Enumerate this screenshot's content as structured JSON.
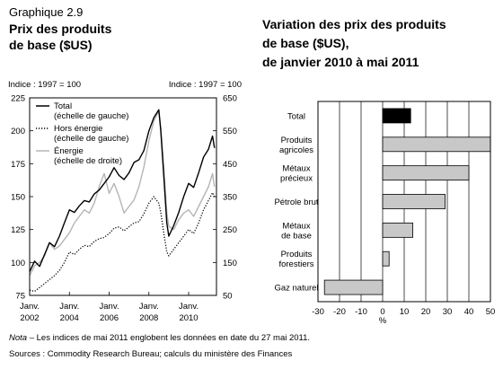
{
  "graph_number": "Graphique 2.9",
  "left_title": [
    "Prix des produits",
    "de base ($US)"
  ],
  "right_title": [
    "Variation des prix des produits",
    "de base ($US),",
    "de janvier 2010 à mai 2011"
  ],
  "note_label": "Nota",
  "note_text": " – Les indices de mai 2011 englobent les données en date du 27 mai 2011.",
  "sources": "Sources : Commodity Research Bureau; calculs du ministère des Finances",
  "chart_data": [
    {
      "type": "line",
      "left_axis_label": "Indice : 1997 = 100",
      "right_axis_label": "Indice : 1997 = 100",
      "left_ylim": [
        75,
        225
      ],
      "left_ticks": [
        "225",
        "200",
        "175",
        "150",
        "125",
        "100",
        "75"
      ],
      "right_ylim": [
        50,
        650
      ],
      "right_ticks": [
        "650",
        "550",
        "450",
        "350",
        "250",
        "150",
        "50"
      ],
      "xlim": [
        2002.0,
        2011.4
      ],
      "x_ticks": [
        {
          "x": 2002,
          "line1": "Janv.",
          "line2": "2002"
        },
        {
          "x": 2004,
          "line1": "Janv.",
          "line2": "2004"
        },
        {
          "x": 2006,
          "line1": "Janv.",
          "line2": "2006"
        },
        {
          "x": 2008,
          "line1": "Janv.",
          "line2": "2008"
        },
        {
          "x": 2010,
          "line1": "Janv.",
          "line2": "2010"
        }
      ],
      "legend_position": "top-left",
      "series": [
        {
          "name": "Total",
          "name_sub": "(échelle de gauche)",
          "axis": "left",
          "style": "solid",
          "color": "#000000",
          "x": [
            2002.0,
            2002.25,
            2002.5,
            2002.75,
            2003.0,
            2003.25,
            2003.5,
            2003.75,
            2004.0,
            2004.25,
            2004.5,
            2004.75,
            2005.0,
            2005.25,
            2005.5,
            2005.75,
            2006.0,
            2006.25,
            2006.5,
            2006.75,
            2007.0,
            2007.25,
            2007.5,
            2007.75,
            2008.0,
            2008.25,
            2008.5,
            2008.6,
            2008.75,
            2008.9,
            2009.0,
            2009.25,
            2009.5,
            2009.75,
            2010.0,
            2010.25,
            2010.5,
            2010.75,
            2011.0,
            2011.2,
            2011.3
          ],
          "y": [
            93,
            101,
            97,
            106,
            115,
            112,
            120,
            130,
            140,
            138,
            143,
            147,
            146,
            152,
            155,
            160,
            165,
            172,
            166,
            163,
            168,
            176,
            178,
            185,
            200,
            210,
            216,
            200,
            165,
            130,
            120,
            128,
            138,
            150,
            160,
            157,
            168,
            180,
            186,
            196,
            187
          ]
        },
        {
          "name": "Hors énergie",
          "name_sub": "(échelle de gauche)",
          "axis": "left",
          "style": "dotted",
          "color": "#000000",
          "x": [
            2002.0,
            2002.25,
            2002.5,
            2002.75,
            2003.0,
            2003.25,
            2003.5,
            2003.75,
            2004.0,
            2004.25,
            2004.5,
            2004.75,
            2005.0,
            2005.25,
            2005.5,
            2005.75,
            2006.0,
            2006.25,
            2006.5,
            2006.75,
            2007.0,
            2007.25,
            2007.5,
            2007.75,
            2008.0,
            2008.25,
            2008.5,
            2008.6,
            2008.75,
            2008.9,
            2009.0,
            2009.25,
            2009.5,
            2009.75,
            2010.0,
            2010.25,
            2010.5,
            2010.75,
            2011.0,
            2011.2,
            2011.3
          ],
          "y": [
            79,
            78,
            81,
            84,
            87,
            90,
            94,
            100,
            108,
            106,
            110,
            113,
            112,
            116,
            118,
            119,
            122,
            126,
            127,
            124,
            127,
            130,
            131,
            137,
            145,
            150,
            145,
            138,
            122,
            108,
            105,
            110,
            115,
            120,
            125,
            122,
            130,
            140,
            147,
            153,
            150
          ]
        },
        {
          "name": "Énergie",
          "name_sub": "(échelle de droite)",
          "axis": "right",
          "style": "solid",
          "color": "#b5b5b5",
          "x": [
            2002.0,
            2002.25,
            2002.5,
            2002.75,
            2003.0,
            2003.25,
            2003.5,
            2003.75,
            2004.0,
            2004.25,
            2004.5,
            2004.75,
            2005.0,
            2005.25,
            2005.5,
            2005.75,
            2006.0,
            2006.25,
            2006.5,
            2006.75,
            2007.0,
            2007.25,
            2007.5,
            2007.75,
            2008.0,
            2008.25,
            2008.5,
            2008.6,
            2008.75,
            2008.9,
            2009.0,
            2009.25,
            2009.5,
            2009.75,
            2010.0,
            2010.25,
            2010.5,
            2010.75,
            2011.0,
            2011.2,
            2011.3
          ],
          "y": [
            110,
            140,
            150,
            170,
            210,
            190,
            200,
            220,
            240,
            270,
            290,
            310,
            300,
            330,
            380,
            420,
            360,
            390,
            350,
            300,
            320,
            340,
            380,
            440,
            520,
            580,
            610,
            560,
            440,
            300,
            260,
            250,
            280,
            300,
            310,
            290,
            320,
            350,
            380,
            420,
            380
          ]
        }
      ]
    },
    {
      "type": "bar",
      "orientation": "horizontal",
      "categories": [
        [
          "Total"
        ],
        [
          "Produits",
          "agricoles"
        ],
        [
          "Métaux",
          "précieux"
        ],
        [
          "Pétrole brut"
        ],
        [
          "Métaux",
          "de base"
        ],
        [
          "Produits",
          "forestiers"
        ],
        [
          "Gaz naturel"
        ]
      ],
      "values": [
        13,
        50,
        40,
        29,
        14,
        3,
        -27
      ],
      "highlight_index": 0,
      "highlight_color": "#000000",
      "bar_color": "#c8c8c8",
      "xlim": [
        -30,
        50
      ],
      "x_ticks": [
        "-30",
        "-20",
        "-10",
        "0",
        "10",
        "20",
        "30",
        "40",
        "50"
      ],
      "x_unit": "%"
    }
  ]
}
